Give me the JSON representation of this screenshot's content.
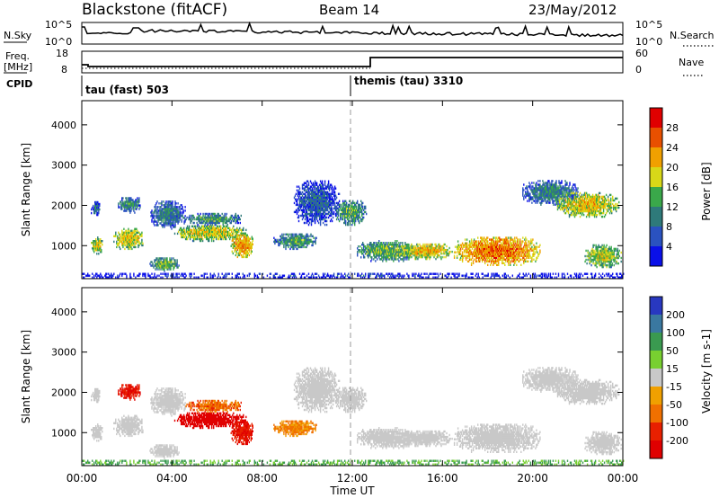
{
  "header": {
    "station": "Blackstone (fitACF)",
    "beam": "Beam 14",
    "date": "23/May/2012"
  },
  "ops": {
    "nsky_label": "N.Sky",
    "nsearch_label": "N.Search",
    "nsky_ticks": [
      "10^5",
      "10^0"
    ],
    "nsearch_ticks": [
      "10^5",
      "10^0"
    ],
    "freq_label_1": "Freq.",
    "freq_label_2": "[MHz]",
    "freq_ticks": [
      "18",
      "8"
    ],
    "nave_label": "Nave",
    "nave_ticks": [
      "60",
      "0"
    ],
    "cpid_label": "CPID",
    "cpid_1": "tau (fast) 503",
    "cpid_2": "themis (tau) 3310"
  },
  "chart_data": [
    {
      "type": "heatmap",
      "name": "power",
      "ylabel": "Slant Range [km]",
      "xlabel": "Time UT",
      "x_ticks": [
        "00:00",
        "04:00",
        "08:00",
        "12:00",
        "16:00",
        "20:00",
        "00:00"
      ],
      "x_range_hours": [
        0,
        24
      ],
      "y_range_km": [
        180,
        4600
      ],
      "y_ticks": [
        1000,
        2000,
        3000,
        4000
      ],
      "colorbar_label": "Power [dB]",
      "colorbar_ticks": [
        "4",
        "8",
        "12",
        "16",
        "20",
        "24",
        "28"
      ],
      "colorbar_colors": [
        "#0a10e8",
        "#2a52c0",
        "#2e7a7a",
        "#3aa84a",
        "#d8d818",
        "#f0a000",
        "#e85000",
        "#e00000"
      ],
      "clusters": [
        {
          "t": [
            0.4,
            0.9
          ],
          "r": [
            780,
            1200
          ],
          "p": 19
        },
        {
          "t": [
            0.4,
            0.8
          ],
          "r": [
            1700,
            2100
          ],
          "p": 9
        },
        {
          "t": [
            1.4,
            2.7
          ],
          "r": [
            900,
            1400
          ],
          "p": 20
        },
        {
          "t": [
            1.6,
            2.6
          ],
          "r": [
            1800,
            2200
          ],
          "p": 12
        },
        {
          "t": [
            3.0,
            4.3
          ],
          "r": [
            350,
            700
          ],
          "p": 15
        },
        {
          "t": [
            3.0,
            4.6
          ],
          "r": [
            1400,
            2100
          ],
          "p": 10
        },
        {
          "t": [
            4.1,
            7.3
          ],
          "r": [
            1100,
            1500
          ],
          "p": 19
        },
        {
          "t": [
            4.6,
            7.1
          ],
          "r": [
            1500,
            1800
          ],
          "p": 13
        },
        {
          "t": [
            6.6,
            7.6
          ],
          "r": [
            700,
            1300
          ],
          "p": 23
        },
        {
          "t": [
            8.5,
            10.4
          ],
          "r": [
            900,
            1300
          ],
          "p": 13
        },
        {
          "t": [
            9.4,
            11.4
          ],
          "r": [
            1500,
            2600
          ],
          "p": 8
        },
        {
          "t": [
            11.2,
            12.6
          ],
          "r": [
            1500,
            2100
          ],
          "p": 14
        },
        {
          "t": [
            12.2,
            15.0
          ],
          "r": [
            600,
            1100
          ],
          "p": 15
        },
        {
          "t": [
            14.2,
            16.4
          ],
          "r": [
            650,
            1050
          ],
          "p": 21
        },
        {
          "t": [
            16.5,
            20.3
          ],
          "r": [
            500,
            1200
          ],
          "p": 25
        },
        {
          "t": [
            19.5,
            22.0
          ],
          "r": [
            2000,
            2600
          ],
          "p": 11
        },
        {
          "t": [
            21.0,
            23.8
          ],
          "r": [
            1700,
            2300
          ],
          "p": 20
        },
        {
          "t": [
            22.3,
            23.9
          ],
          "r": [
            450,
            1000
          ],
          "p": 18
        },
        {
          "t": [
            0.0,
            24.0
          ],
          "r": [
            190,
            290
          ],
          "p": 5
        }
      ]
    },
    {
      "type": "heatmap",
      "name": "velocity",
      "ylabel": "Slant Range [km]",
      "xlabel": "Time UT",
      "x_ticks": [
        "00:00",
        "04:00",
        "08:00",
        "12:00",
        "16:00",
        "20:00",
        "00:00"
      ],
      "x_range_hours": [
        0,
        24
      ],
      "y_range_km": [
        180,
        4600
      ],
      "y_ticks": [
        1000,
        2000,
        3000,
        4000
      ],
      "colorbar_label": "Velocity [m s-1]",
      "colorbar_ticks": [
        "200",
        "100",
        "50",
        "15",
        "-15",
        "-50",
        "-100",
        "-200"
      ],
      "colorbar_colors": [
        "#2838c0",
        "#3a78a0",
        "#3a9a50",
        "#78d030",
        "#c8c8c8",
        "#f0a000",
        "#f07000",
        "#e82000",
        "#e00000"
      ],
      "clusters": [
        {
          "t": [
            0.4,
            0.9
          ],
          "r": [
            780,
            1200
          ],
          "v": 0
        },
        {
          "t": [
            0.4,
            0.8
          ],
          "r": [
            1700,
            2100
          ],
          "v": 0
        },
        {
          "t": [
            1.4,
            2.7
          ],
          "r": [
            900,
            1400
          ],
          "v": 0
        },
        {
          "t": [
            1.6,
            2.6
          ],
          "r": [
            1800,
            2200
          ],
          "v": -180
        },
        {
          "t": [
            3.0,
            4.3
          ],
          "r": [
            350,
            700
          ],
          "v": 0
        },
        {
          "t": [
            3.0,
            4.6
          ],
          "r": [
            1400,
            2100
          ],
          "v": 0
        },
        {
          "t": [
            4.1,
            7.3
          ],
          "r": [
            1100,
            1500
          ],
          "v": -220
        },
        {
          "t": [
            4.6,
            7.1
          ],
          "r": [
            1500,
            1800
          ],
          "v": -80
        },
        {
          "t": [
            6.6,
            7.6
          ],
          "r": [
            700,
            1300
          ],
          "v": -180
        },
        {
          "t": [
            8.5,
            10.4
          ],
          "r": [
            900,
            1300
          ],
          "v": -60
        },
        {
          "t": [
            9.4,
            11.4
          ],
          "r": [
            1500,
            2600
          ],
          "v": 0
        },
        {
          "t": [
            11.2,
            12.6
          ],
          "r": [
            1500,
            2100
          ],
          "v": 0
        },
        {
          "t": [
            12.2,
            15.0
          ],
          "r": [
            600,
            1100
          ],
          "v": 0
        },
        {
          "t": [
            14.2,
            16.4
          ],
          "r": [
            650,
            1050
          ],
          "v": 0
        },
        {
          "t": [
            16.5,
            20.3
          ],
          "r": [
            500,
            1200
          ],
          "v": 0
        },
        {
          "t": [
            19.5,
            22.0
          ],
          "r": [
            2000,
            2600
          ],
          "v": 0
        },
        {
          "t": [
            21.0,
            23.8
          ],
          "r": [
            1700,
            2300
          ],
          "v": 0
        },
        {
          "t": [
            22.3,
            23.9
          ],
          "r": [
            450,
            1000
          ],
          "v": 0
        },
        {
          "t": [
            0.0,
            24.0
          ],
          "r": [
            190,
            290
          ],
          "v": 30
        }
      ]
    }
  ]
}
